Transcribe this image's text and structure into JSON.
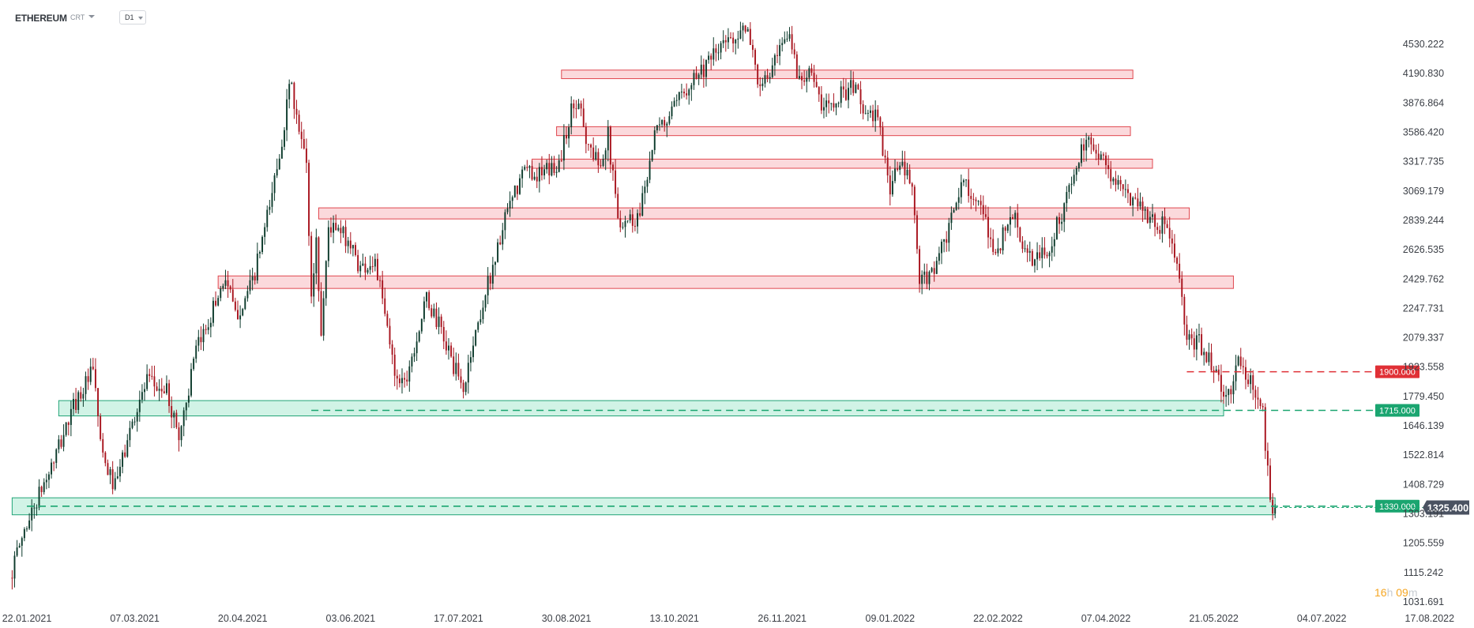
{
  "toolbar": {
    "symbol": "ETHEREUM",
    "instrument_type": "CRT",
    "timeframe": "D1"
  },
  "countdown": {
    "hours": "16",
    "hours_unit": "h",
    "minutes": "09",
    "minutes_unit": "m"
  },
  "colors": {
    "bull": "#0d3b2c",
    "bear": "#a8141e",
    "resistance_fill": "#fbd9dc",
    "resistance_stroke": "#e0474f",
    "support_fill": "#c9f1e2",
    "support_stroke": "#23a578",
    "level_red": "#e03036",
    "level_green": "#1aa570",
    "current_price_bg": "#4a5261"
  },
  "chart_data": {
    "type": "candlestick",
    "symbol": "ETHEREUM",
    "timeframe": "D1",
    "y_ticks": [
      4530.222,
      4190.83,
      3876.864,
      3586.42,
      3317.735,
      3069.179,
      2839.244,
      2626.535,
      2429.762,
      2247.731,
      2079.337,
      1923.558,
      1779.45,
      1646.139,
      1522.814,
      1408.729,
      1303.191,
      1205.559,
      1115.242,
      1031.691
    ],
    "y_scale": "log",
    "x_ticks": [
      "22.01.2021",
      "07.03.2021",
      "20.04.2021",
      "03.06.2021",
      "17.07.2021",
      "30.08.2021",
      "13.10.2021",
      "26.11.2021",
      "09.01.2022",
      "22.02.2022",
      "07.04.2022",
      "21.05.2022",
      "04.07.2022",
      "17.08.2022"
    ],
    "current_price": "1325.400",
    "levels": [
      {
        "value": "1900.000",
        "kind": "resistance",
        "from": "2022-05-10"
      },
      {
        "value": "1715.000",
        "kind": "support",
        "from": "2021-05-18"
      },
      {
        "value": "1330.000",
        "kind": "support",
        "from": "2021-01-22"
      }
    ],
    "resistance_zones": [
      {
        "low": 4135,
        "high": 4230,
        "from": "2021-08-28",
        "to": "2022-04-18"
      },
      {
        "low": 3555,
        "high": 3640,
        "from": "2021-08-26",
        "to": "2022-04-17"
      },
      {
        "low": 3260,
        "high": 3340,
        "from": "2021-08-16",
        "to": "2022-04-26"
      },
      {
        "low": 2850,
        "high": 2935,
        "from": "2021-05-21",
        "to": "2022-05-11"
      },
      {
        "low": 2370,
        "high": 2450,
        "from": "2021-04-10",
        "to": "2022-05-29"
      }
    ],
    "support_zones": [
      {
        "low": 1690,
        "high": 1760,
        "from": "2021-02-04",
        "to": "2022-05-25"
      },
      {
        "low": 1300,
        "high": 1360,
        "from": "2021-01-16",
        "to": "2022-06-15"
      }
    ],
    "price_path": [
      [
        "2021-01-16",
        1100
      ],
      [
        "2021-01-22",
        1250
      ],
      [
        "2021-02-03",
        1500
      ],
      [
        "2021-02-12",
        1760
      ],
      [
        "2021-02-19",
        1900
      ],
      [
        "2021-02-23",
        1500
      ],
      [
        "2021-02-28",
        1400
      ],
      [
        "2021-03-08",
        1700
      ],
      [
        "2021-03-13",
        1850
      ],
      [
        "2021-03-21",
        1800
      ],
      [
        "2021-03-26",
        1600
      ],
      [
        "2021-04-02",
        2000
      ],
      [
        "2021-04-14",
        2450
      ],
      [
        "2021-04-18",
        2200
      ],
      [
        "2021-04-25",
        2400
      ],
      [
        "2021-05-01",
        2850
      ],
      [
        "2021-05-06",
        3400
      ],
      [
        "2021-05-11",
        4150
      ],
      [
        "2021-05-12",
        3800
      ],
      [
        "2021-05-17",
        3300
      ],
      [
        "2021-05-19",
        2300
      ],
      [
        "2021-05-21",
        2700
      ],
      [
        "2021-05-23",
        2100
      ],
      [
        "2021-05-26",
        2800
      ],
      [
        "2021-06-03",
        2700
      ],
      [
        "2021-06-08",
        2500
      ],
      [
        "2021-06-14",
        2550
      ],
      [
        "2021-06-22",
        1900
      ],
      [
        "2021-06-26",
        1850
      ],
      [
        "2021-07-05",
        2300
      ],
      [
        "2021-07-10",
        2150
      ],
      [
        "2021-07-20",
        1800
      ],
      [
        "2021-07-23",
        2000
      ],
      [
        "2021-07-30",
        2400
      ],
      [
        "2021-08-07",
        2900
      ],
      [
        "2021-08-14",
        3250
      ],
      [
        "2021-08-21",
        3200
      ],
      [
        "2021-08-28",
        3300
      ],
      [
        "2021-09-02",
        3800
      ],
      [
        "2021-09-06",
        3900
      ],
      [
        "2021-09-08",
        3500
      ],
      [
        "2021-09-13",
        3300
      ],
      [
        "2021-09-17",
        3550
      ],
      [
        "2021-09-21",
        2850
      ],
      [
        "2021-09-29",
        2850
      ],
      [
        "2021-10-06",
        3550
      ],
      [
        "2021-10-15",
        3850
      ],
      [
        "2021-10-21",
        4150
      ],
      [
        "2021-10-28",
        4300
      ],
      [
        "2021-11-02",
        4500
      ],
      [
        "2021-11-10",
        4700
      ],
      [
        "2021-11-14",
        4600
      ],
      [
        "2021-11-18",
        4000
      ],
      [
        "2021-11-24",
        4300
      ],
      [
        "2021-11-30",
        4650
      ],
      [
        "2021-12-04",
        4100
      ],
      [
        "2021-12-08",
        4300
      ],
      [
        "2021-12-13",
        3800
      ],
      [
        "2021-12-19",
        3950
      ],
      [
        "2021-12-27",
        4050
      ],
      [
        "2022-01-01",
        3700
      ],
      [
        "2022-01-04",
        3800
      ],
      [
        "2022-01-10",
        3100
      ],
      [
        "2022-01-14",
        3300
      ],
      [
        "2022-01-19",
        3100
      ],
      [
        "2022-01-22",
        2400
      ],
      [
        "2022-01-26",
        2450
      ],
      [
        "2022-02-02",
        2700
      ],
      [
        "2022-02-07",
        3050
      ],
      [
        "2022-02-10",
        3150
      ],
      [
        "2022-02-16",
        2900
      ],
      [
        "2022-02-22",
        2600
      ],
      [
        "2022-03-01",
        2900
      ],
      [
        "2022-03-07",
        2550
      ],
      [
        "2022-03-15",
        2600
      ],
      [
        "2022-03-22",
        2950
      ],
      [
        "2022-03-29",
        3400
      ],
      [
        "2022-04-03",
        3500
      ],
      [
        "2022-04-10",
        3200
      ],
      [
        "2022-04-15",
        3050
      ],
      [
        "2022-04-21",
        3000
      ],
      [
        "2022-04-26",
        2850
      ],
      [
        "2022-05-01",
        2800
      ],
      [
        "2022-05-05",
        2700
      ],
      [
        "2022-05-08",
        2400
      ],
      [
        "2022-05-11",
        2050
      ],
      [
        "2022-05-16",
        2050
      ],
      [
        "2022-05-21",
        1950
      ],
      [
        "2022-05-27",
        1750
      ],
      [
        "2022-06-01",
        1950
      ],
      [
        "2022-06-08",
        1800
      ],
      [
        "2022-06-11",
        1700
      ],
      [
        "2022-06-13",
        1450
      ],
      [
        "2022-06-15",
        1325
      ]
    ]
  }
}
